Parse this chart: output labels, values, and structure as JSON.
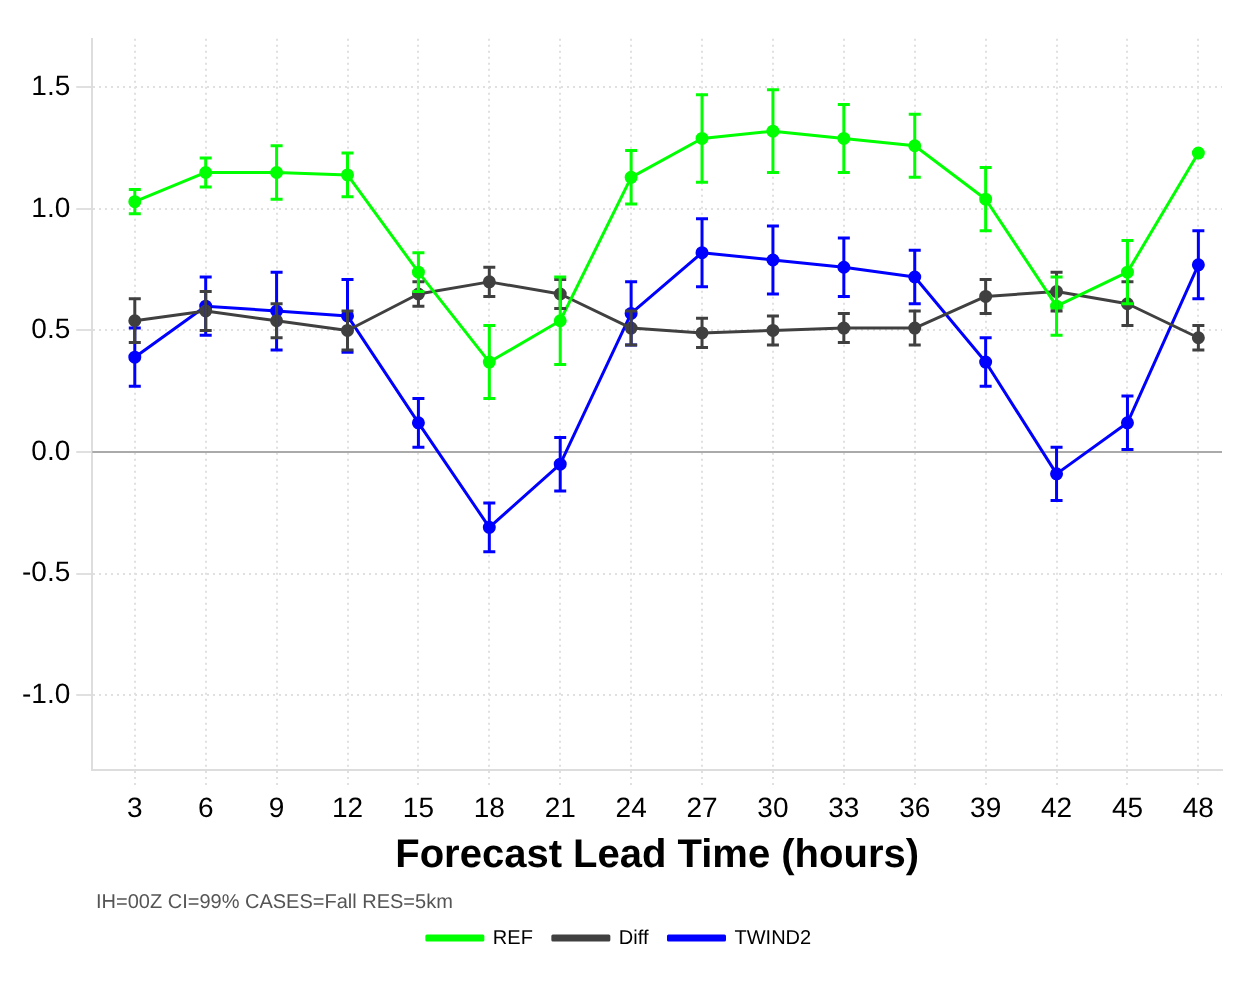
{
  "chart_data": {
    "type": "line",
    "xlabel": "Forecast Lead Time (hours)",
    "x": [
      3,
      6,
      9,
      12,
      15,
      18,
      21,
      24,
      27,
      30,
      33,
      36,
      39,
      42,
      45,
      48
    ],
    "xlim": [
      1.2,
      49
    ],
    "xticks": [
      3,
      6,
      9,
      12,
      15,
      18,
      21,
      24,
      27,
      30,
      33,
      36,
      39,
      42,
      45,
      48
    ],
    "ylim": [
      -1.31,
      1.7
    ],
    "yticks": [
      {
        "value": -1,
        "label": "-1.0"
      },
      {
        "value": -0.5,
        "label": "-0.5"
      },
      {
        "value": 0,
        "label": "0.0"
      },
      {
        "value": 0.5,
        "label": "0.5"
      },
      {
        "value": 1,
        "label": "1.0"
      },
      {
        "value": 1.5,
        "label": "1.5"
      }
    ],
    "series": [
      {
        "name": "TWIND2",
        "color": "#0000ff",
        "values": [
          0.39,
          0.6,
          0.58,
          0.56,
          0.12,
          -0.31,
          -0.05,
          0.57,
          0.82,
          0.79,
          0.76,
          0.72,
          0.37,
          -0.09,
          0.12,
          0.77
        ],
        "errors": [
          0.12,
          0.12,
          0.16,
          0.15,
          0.1,
          0.1,
          0.11,
          0.13,
          0.14,
          0.14,
          0.12,
          0.11,
          0.1,
          0.11,
          0.11,
          0.14
        ]
      },
      {
        "name": "Diff",
        "color": "#404040",
        "values": [
          0.54,
          0.58,
          0.54,
          0.5,
          0.65,
          0.7,
          0.65,
          0.51,
          0.49,
          0.5,
          0.51,
          0.51,
          0.64,
          0.66,
          0.61,
          0.47
        ],
        "errors": [
          0.09,
          0.08,
          0.07,
          0.08,
          0.05,
          0.06,
          0.06,
          0.07,
          0.06,
          0.06,
          0.06,
          0.07,
          0.07,
          0.08,
          0.09,
          0.05
        ]
      },
      {
        "name": "REF",
        "color": "#00ff00",
        "values": [
          1.03,
          1.15,
          1.15,
          1.14,
          0.74,
          0.37,
          0.54,
          1.13,
          1.29,
          1.32,
          1.29,
          1.26,
          1.04,
          0.6,
          0.74,
          1.23
        ],
        "errors": [
          0.05,
          0.06,
          0.11,
          0.09,
          0.08,
          0.15,
          0.18,
          0.11,
          0.18,
          0.17,
          0.14,
          0.13,
          0.13,
          0.12,
          0.13,
          null
        ]
      }
    ],
    "ref_lines": [
      {
        "axis": "y",
        "value": 0,
        "color": "#aaaaaa"
      }
    ],
    "annotations": [
      "IH=00Z CI=99% CASES=Fall RES=5km"
    ],
    "grid": true,
    "legend": "bottom",
    "marker": "circle",
    "line_style": "solid"
  }
}
